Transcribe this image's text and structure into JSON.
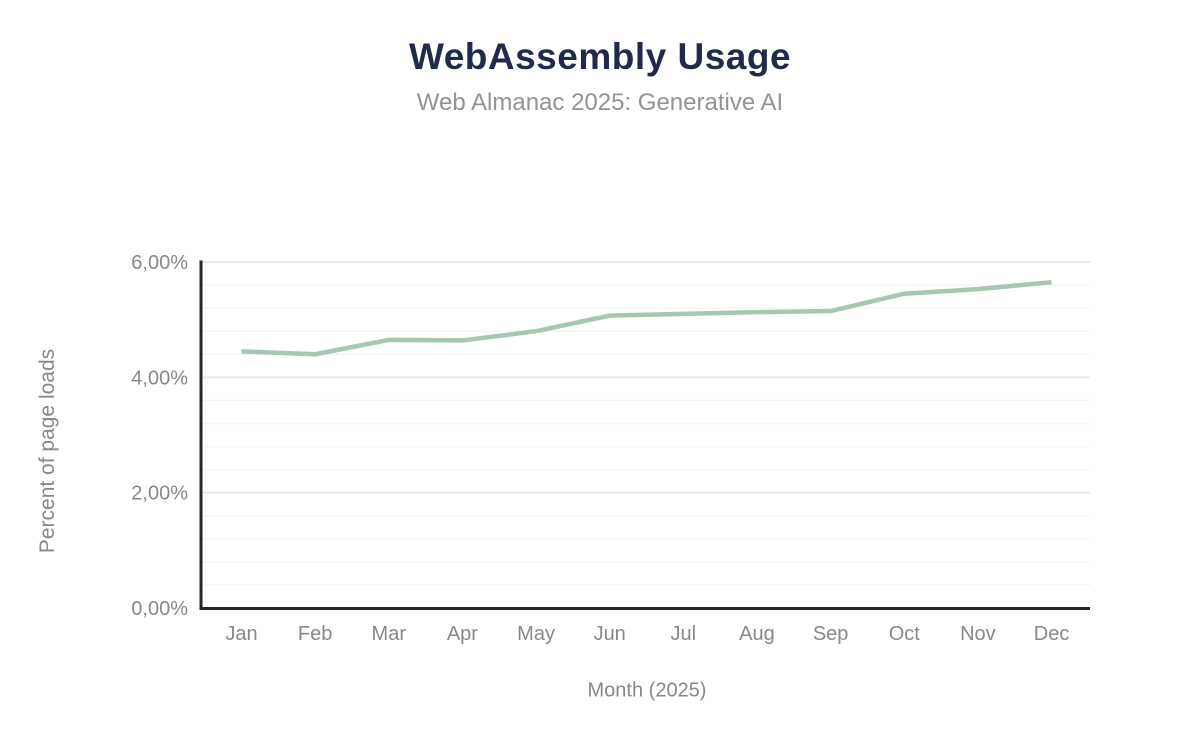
{
  "chart": {
    "title": "WebAssembly Usage",
    "subtitle": "Web Almanac 2025: Generative AI"
  },
  "chart_data": {
    "type": "line",
    "title": "WebAssembly Usage",
    "subtitle": "Web Almanac 2025: Generative AI",
    "categories": [
      "Jan",
      "Feb",
      "Mar",
      "Apr",
      "May",
      "Jun",
      "Jul",
      "Aug",
      "Sep",
      "Oct",
      "Nov",
      "Dec"
    ],
    "series": [
      {
        "name": "Percent of page loads",
        "values": [
          4.45,
          4.4,
          4.65,
          4.64,
          4.8,
          5.07,
          5.1,
          5.13,
          5.15,
          5.45,
          5.53,
          5.65
        ]
      }
    ],
    "xlabel": "Month (2025)",
    "ylabel": "Percent of page loads",
    "ylim": [
      0,
      6
    ],
    "yticks": [
      {
        "value": 0,
        "label": "0,00%"
      },
      {
        "value": 2,
        "label": "2,00%"
      },
      {
        "value": 4,
        "label": "4,00%"
      },
      {
        "value": 6,
        "label": "6,00%"
      }
    ],
    "y_minor_step": 0.4,
    "decimal_separator": ",",
    "grid": true,
    "legend_position": "none"
  },
  "colors": {
    "background": "#ffffff",
    "line": "#a8c6b2",
    "title": "#1f2b49",
    "subtitle": "#919497",
    "axis": "#262626",
    "tick_label": "#85888d",
    "grid_major": "#eaeaea",
    "grid_minor": "#f5f5f5"
  }
}
